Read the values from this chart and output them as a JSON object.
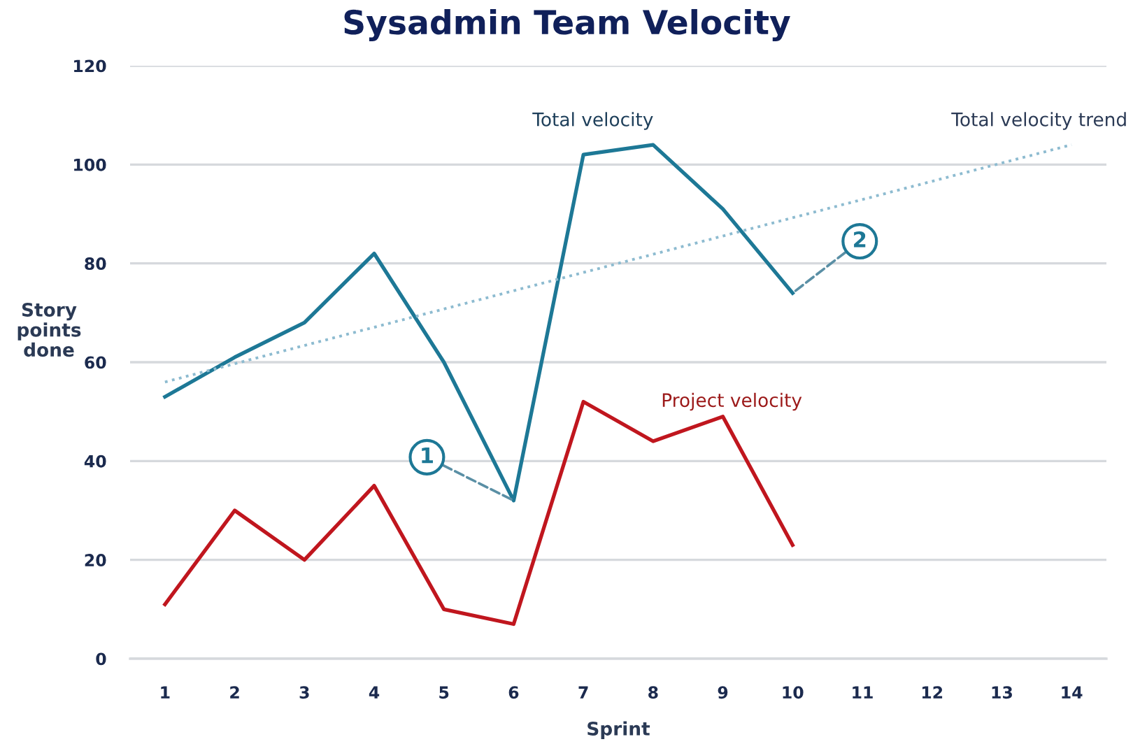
{
  "chart_data": {
    "type": "line",
    "title": "Sysadmin Team Velocity",
    "xlabel": "Sprint",
    "ylabel": "Story points done",
    "x": [
      1,
      2,
      3,
      4,
      5,
      6,
      7,
      8,
      9,
      10
    ],
    "xlim": [
      0.5,
      14.5
    ],
    "xticks": [
      1,
      2,
      3,
      4,
      5,
      6,
      7,
      8,
      9,
      10,
      11,
      12,
      13,
      14
    ],
    "ylim": [
      0,
      120
    ],
    "yticks": [
      0,
      20,
      40,
      60,
      80,
      100,
      120
    ],
    "grid": "y",
    "marker": "none",
    "line_style": "solid",
    "series": [
      {
        "name": "Total velocity",
        "color": "#1d7896",
        "values": [
          53,
          61,
          68,
          82,
          60,
          32,
          102,
          104,
          91,
          74
        ]
      },
      {
        "name": "Project velocity",
        "color": "#c0161e",
        "values": [
          11,
          30,
          20,
          35,
          10,
          7,
          52,
          44,
          49,
          23
        ]
      },
      {
        "name": "Total velocity trend",
        "type": "line",
        "x": [
          1,
          14
        ],
        "values": [
          56,
          104
        ],
        "color": "#8dbbd0",
        "line_style": "dotted"
      }
    ],
    "annotations": [
      {
        "text": "1",
        "x": 6,
        "y": 32
      },
      {
        "text": "2",
        "x": 10,
        "y": 74
      }
    ]
  }
}
